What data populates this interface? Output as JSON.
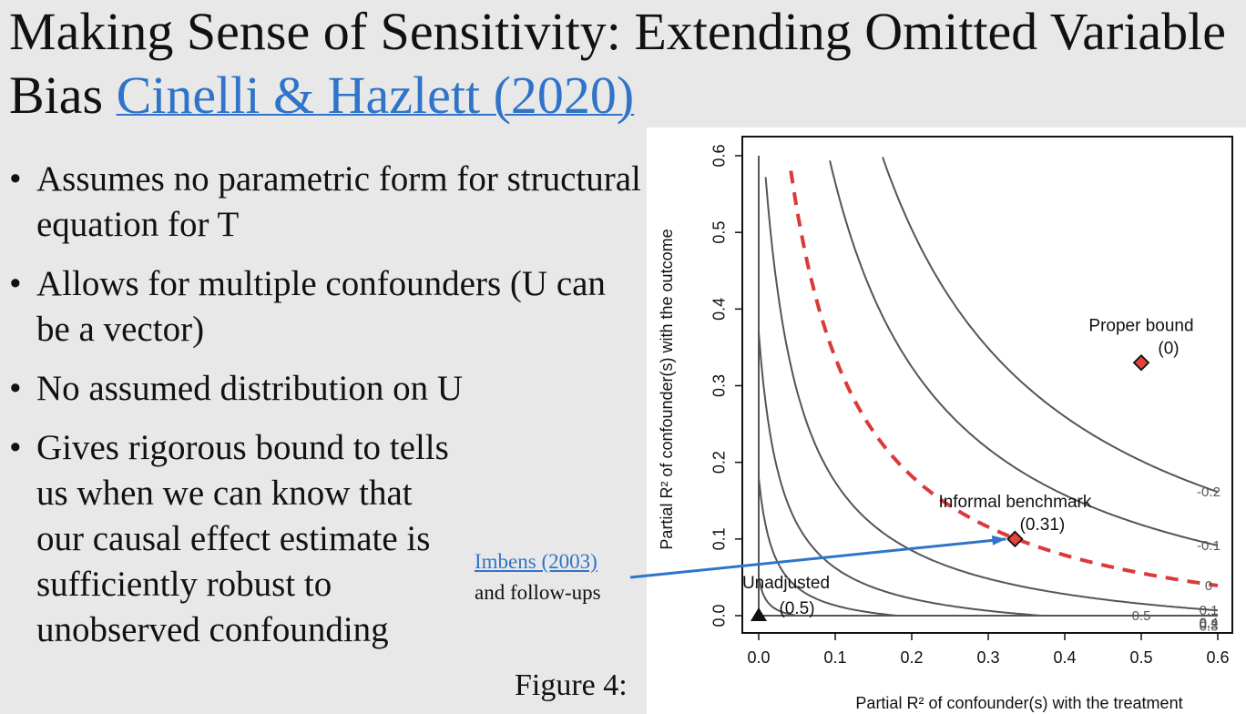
{
  "title": {
    "text": "Making Sense of Sensitivity: Extending Omitted Variable Bias",
    "link": "Cinelli & Hazlett (2020)"
  },
  "bullets": [
    "Assumes no parametric form for structural equation for T",
    "Allows for multiple confounders (U can be a vector)",
    "No assumed distribution on U",
    "Gives rigorous bound to tells us when we can know that our causal effect estimate is sufficiently robust to unobserved confounding"
  ],
  "figure_caption": "Figure 4:",
  "callout": {
    "link": "Imbens (2003)",
    "text": "and follow-ups"
  },
  "colors": {
    "accent_link": "#2f74c8",
    "bound_line": "#d93a3a",
    "contour": "#555555",
    "marker": "#e0443a"
  },
  "chart_data": {
    "type": "contour",
    "xlabel": "Partial R² of confounder(s) with the treatment",
    "ylabel": "Partial R² of confounder(s) with the outcome",
    "xlim": [
      0,
      0.6
    ],
    "ylim": [
      0,
      0.6
    ],
    "xticks": [
      "0.0",
      "0.1",
      "0.2",
      "0.3",
      "0.4",
      "0.5",
      "0.6"
    ],
    "yticks": [
      "0.0",
      "0.1",
      "0.2",
      "0.3",
      "0.4",
      "0.5",
      "0.6"
    ],
    "contour_labels": [
      "0.5",
      "0.4",
      "0.3",
      "0.2",
      "0.1",
      "0",
      "-0.1",
      "-0.2"
    ],
    "critical_contour": "0",
    "points": [
      {
        "label": "Unadjusted",
        "value": "(0.5)",
        "x": 0,
        "y": 0,
        "marker": "triangle"
      },
      {
        "label": "Informal benchmark",
        "value": "(0.31)",
        "x": 0.335,
        "y": 0.1,
        "marker": "diamond"
      },
      {
        "label": "Proper bound",
        "value": "(0)",
        "x": 0.5,
        "y": 0.33,
        "marker": "diamond"
      }
    ]
  }
}
